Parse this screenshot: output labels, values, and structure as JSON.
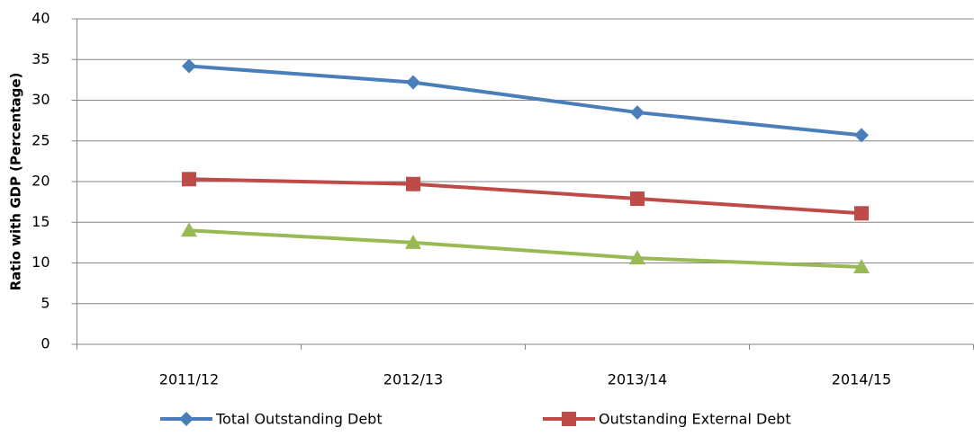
{
  "chart_data": {
    "type": "line",
    "y_label": "Ratio with GDP (Percentage)",
    "categories": [
      "2011/12",
      "2012/13",
      "2013/14",
      "2014/15"
    ],
    "series": [
      {
        "name": "Total Outstanding Debt",
        "color": "#4a7ebb",
        "marker": "diamond",
        "values": [
          34.2,
          32.2,
          28.5,
          25.7
        ]
      },
      {
        "name": "Outstanding External Debt",
        "color": "#be4b48",
        "marker": "square",
        "values": [
          20.3,
          19.7,
          17.9,
          16.1
        ]
      },
      {
        "color": "#98b954",
        "marker": "triangle",
        "values": [
          14.0,
          12.5,
          10.6,
          9.5
        ]
      }
    ],
    "ylim": [
      0,
      40
    ],
    "yticks": [
      0,
      5,
      10,
      15,
      20,
      25,
      30,
      35,
      40
    ],
    "grid": true
  }
}
